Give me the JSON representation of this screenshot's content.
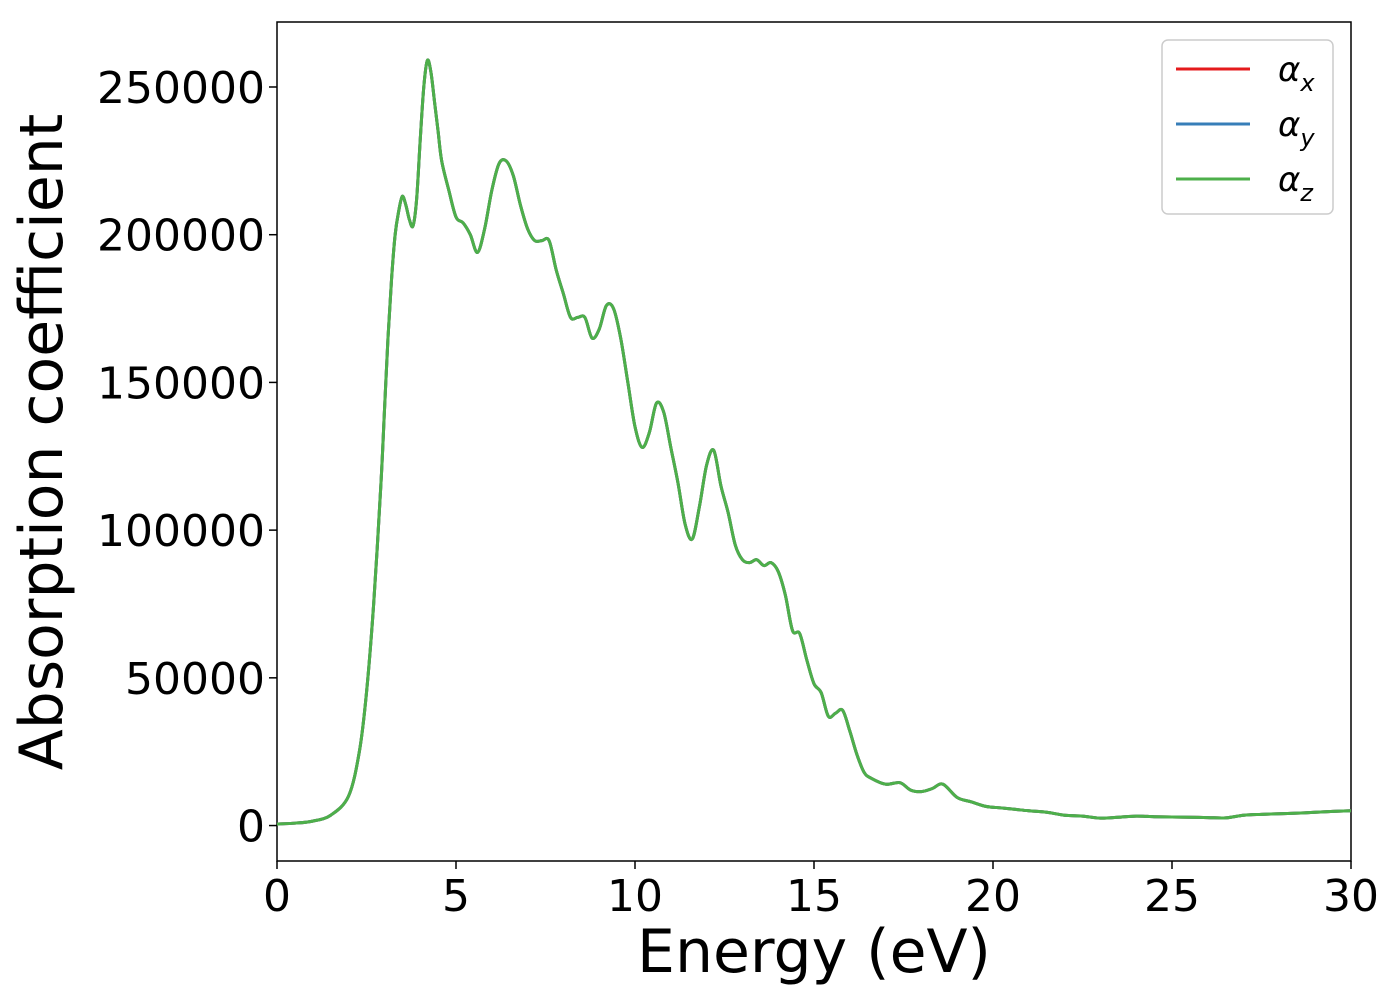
{
  "chart_data": {
    "type": "line",
    "xlabel": "Energy (eV)",
    "ylabel": "Absorption coefficient",
    "xlim": [
      0,
      30
    ],
    "ylim": [
      -12000,
      272000
    ],
    "xticks": [
      0,
      5,
      10,
      15,
      20,
      25,
      30
    ],
    "yticks": [
      0,
      50000,
      100000,
      150000,
      200000,
      250000
    ],
    "grid": false,
    "legend_position": "top-right",
    "x": [
      0,
      0.5,
      1.0,
      1.5,
      2.0,
      2.3,
      2.5,
      2.7,
      2.9,
      3.0,
      3.1,
      3.2,
      3.3,
      3.4,
      3.5,
      3.6,
      3.7,
      3.8,
      3.9,
      4.0,
      4.1,
      4.2,
      4.3,
      4.4,
      4.5,
      4.6,
      4.8,
      5.0,
      5.2,
      5.4,
      5.6,
      5.8,
      6.0,
      6.2,
      6.4,
      6.6,
      6.8,
      7.0,
      7.2,
      7.4,
      7.6,
      7.8,
      8.0,
      8.2,
      8.4,
      8.6,
      8.8,
      9.0,
      9.2,
      9.4,
      9.6,
      9.8,
      10.0,
      10.2,
      10.4,
      10.6,
      10.8,
      11.0,
      11.2,
      11.4,
      11.6,
      11.8,
      12.0,
      12.2,
      12.4,
      12.6,
      12.8,
      13.0,
      13.2,
      13.4,
      13.6,
      13.8,
      14.0,
      14.2,
      14.4,
      14.6,
      14.8,
      15.0,
      15.2,
      15.4,
      15.6,
      15.8,
      16.0,
      16.2,
      16.4,
      16.6,
      17.0,
      17.4,
      17.7,
      18.0,
      18.3,
      18.6,
      19.0,
      19.4,
      19.8,
      20.2,
      20.6,
      21.0,
      21.5,
      22.0,
      22.5,
      23.0,
      23.5,
      24.0,
      24.5,
      25.0,
      25.5,
      26.0,
      26.5,
      27.0,
      27.5,
      28.0,
      28.5,
      29.0,
      29.5,
      30.0
    ],
    "series": [
      {
        "name": "α_x",
        "color": "#e41a1c",
        "values": [
          500,
          800,
          1500,
          3500,
          10000,
          25000,
          45000,
          75000,
          115000,
          140000,
          165000,
          185000,
          200000,
          208000,
          213000,
          210000,
          205000,
          203000,
          212000,
          232000,
          250000,
          259000,
          255000,
          245000,
          235000,
          225000,
          215000,
          206000,
          204000,
          200000,
          194000,
          202000,
          215000,
          224000,
          225000,
          220000,
          210000,
          202000,
          198000,
          198000,
          198000,
          188000,
          180000,
          172000,
          172000,
          172000,
          165000,
          168000,
          176000,
          175000,
          165000,
          150000,
          135000,
          128000,
          133000,
          143000,
          140000,
          128000,
          116000,
          102000,
          97000,
          108000,
          122000,
          127000,
          115000,
          106000,
          95000,
          90000,
          89000,
          90000,
          88000,
          89000,
          86000,
          78000,
          66000,
          65000,
          56000,
          48000,
          45000,
          37000,
          38000,
          39000,
          32000,
          24000,
          18000,
          16000,
          14000,
          14500,
          12000,
          11500,
          12500,
          14000,
          9500,
          8000,
          6500,
          6000,
          5500,
          5000,
          4500,
          3500,
          3200,
          2500,
          2800,
          3200,
          3000,
          2900,
          2800,
          2700,
          2600,
          3500,
          3800,
          4000,
          4200,
          4500,
          4800,
          5000
        ]
      },
      {
        "name": "α_y",
        "color": "#377eb8",
        "values": [
          500,
          800,
          1500,
          3500,
          10000,
          25000,
          45000,
          75000,
          115000,
          140000,
          165000,
          185000,
          200000,
          208000,
          213000,
          210000,
          205000,
          203000,
          212000,
          232000,
          250000,
          259000,
          255000,
          245000,
          235000,
          225000,
          215000,
          206000,
          204000,
          200000,
          194000,
          202000,
          215000,
          224000,
          225000,
          220000,
          210000,
          202000,
          198000,
          198000,
          198000,
          188000,
          180000,
          172000,
          172000,
          172000,
          165000,
          168000,
          176000,
          175000,
          165000,
          150000,
          135000,
          128000,
          133000,
          143000,
          140000,
          128000,
          116000,
          102000,
          97000,
          108000,
          122000,
          127000,
          115000,
          106000,
          95000,
          90000,
          89000,
          90000,
          88000,
          89000,
          86000,
          78000,
          66000,
          65000,
          56000,
          48000,
          45000,
          37000,
          38000,
          39000,
          32000,
          24000,
          18000,
          16000,
          14000,
          14500,
          12000,
          11500,
          12500,
          14000,
          9500,
          8000,
          6500,
          6000,
          5500,
          5000,
          4500,
          3500,
          3200,
          2500,
          2800,
          3200,
          3000,
          2900,
          2800,
          2700,
          2600,
          3500,
          3800,
          4000,
          4200,
          4500,
          4800,
          5000
        ]
      },
      {
        "name": "α_z",
        "color": "#4daf4a",
        "values": [
          500,
          800,
          1500,
          3500,
          10000,
          25000,
          45000,
          75000,
          115000,
          140000,
          165000,
          185000,
          200000,
          208000,
          213000,
          210000,
          205000,
          203000,
          212000,
          232000,
          250000,
          259000,
          255000,
          245000,
          235000,
          225000,
          215000,
          206000,
          204000,
          200000,
          194000,
          202000,
          215000,
          224000,
          225000,
          220000,
          210000,
          202000,
          198000,
          198000,
          198000,
          188000,
          180000,
          172000,
          172000,
          172000,
          165000,
          168000,
          176000,
          175000,
          165000,
          150000,
          135000,
          128000,
          133000,
          143000,
          140000,
          128000,
          116000,
          102000,
          97000,
          108000,
          122000,
          127000,
          115000,
          106000,
          95000,
          90000,
          89000,
          90000,
          88000,
          89000,
          86000,
          78000,
          66000,
          65000,
          56000,
          48000,
          45000,
          37000,
          38000,
          39000,
          32000,
          24000,
          18000,
          16000,
          14000,
          14500,
          12000,
          11500,
          12500,
          14000,
          9500,
          8000,
          6500,
          6000,
          5500,
          5000,
          4500,
          3500,
          3200,
          2500,
          2800,
          3200,
          3000,
          2900,
          2800,
          2700,
          2600,
          3500,
          3800,
          4000,
          4200,
          4500,
          4800,
          5000
        ]
      }
    ],
    "legend": [
      {
        "base": "α",
        "sub": "x"
      },
      {
        "base": "α",
        "sub": "y"
      },
      {
        "base": "α",
        "sub": "z"
      }
    ]
  }
}
